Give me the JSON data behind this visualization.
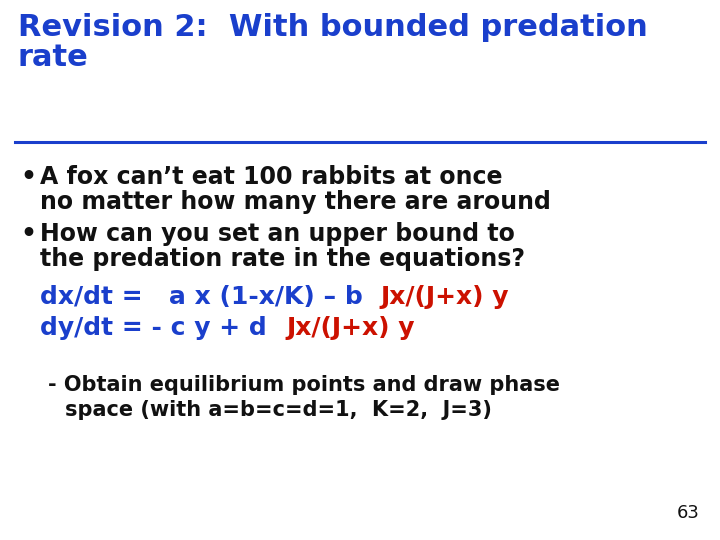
{
  "title_line1": "Revision 2:  With bounded predation",
  "title_line2": "rate",
  "bg_color": "#ffffff",
  "bullet1_line1": "A fox can’t eat 100 rabbits at once",
  "bullet1_line2": "no matter how many there are around",
  "bullet2_line1": "How can you set an upper bound to",
  "bullet2_line2": "the predation rate in the equations?",
  "eq1_blue": "dx/dt =   a x (1-x/K) – b ",
  "eq1_red": "Jx/(J+x) y",
  "eq2_blue": "dy/dt = - c y + d ",
  "eq2_red": "Jx/(J+x) y",
  "note_line1": "- Obtain equilibrium points and draw phase",
  "note_line2": "space (with a=b=c=d=1,  K=2,  J=3)",
  "page_number": "63",
  "blue_color": "#1a3fcc",
  "red_color": "#cc1100",
  "black_color": "#111111",
  "title_fontsize": 22,
  "bullet_fontsize": 17,
  "eq_fontsize": 18,
  "note_fontsize": 15,
  "page_fontsize": 13
}
